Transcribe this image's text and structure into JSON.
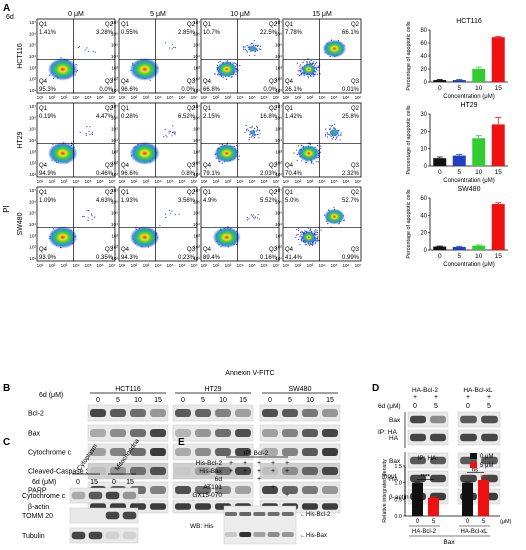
{
  "panels": {
    "A": "A",
    "B": "B",
    "C": "C",
    "D": "D",
    "E": "E"
  },
  "flow": {
    "compound_label": "6d",
    "concentrations": [
      "0 μM",
      "5 μM",
      "10 μM",
      "15 μM"
    ],
    "row_labels": [
      "HCT116",
      "HT29",
      "SW480"
    ],
    "y_axis_label": "PI",
    "x_axis_label": "Annexin V-FITC",
    "quadrant_names": [
      "Q1",
      "Q2",
      "Q3",
      "Q4"
    ],
    "y_ticks": [
      "10⁷",
      "10⁶",
      "10⁵",
      "10⁴",
      "10³",
      "10²",
      "10¹"
    ],
    "x_ticks": [
      "10¹",
      "10²",
      "10³",
      "10⁴",
      "10⁵",
      "10⁶",
      "10⁷"
    ],
    "quadrant_values": [
      [
        [
          "1.41%",
          "3.28%",
          "0.0%",
          "95.3%"
        ],
        [
          "0.55%",
          "2.85%",
          "0.0%",
          "96.6%"
        ],
        [
          "10.7%",
          "22.5%",
          "0.0%",
          "66.8%"
        ],
        [
          "7.78%",
          "66.1%",
          "0.01%",
          "26.1%"
        ]
      ],
      [
        [
          "0.19%",
          "4.47%",
          "0.46%",
          "94.9%"
        ],
        [
          "0.28%",
          "6.52%",
          "0.8%",
          "96.6%"
        ],
        [
          "2.15%",
          "16.8%",
          "2.03%",
          "79.1%"
        ],
        [
          "1.42%",
          "25.8%",
          "2.32%",
          "70.4%"
        ]
      ],
      [
        [
          "1.09%",
          "4.63%",
          "0.35%",
          "93.9%"
        ],
        [
          "1.93%",
          "3.56%",
          "0.23%",
          "94.3%"
        ],
        [
          "4.9%",
          "5.52%",
          "0.16%",
          "89.4%"
        ],
        [
          "5.0%",
          "52.7%",
          "0.99%",
          "41.4%"
        ]
      ]
    ]
  },
  "bar_charts": {
    "ylabel": "Percentage of apoptotic cells",
    "xlabel": "Concentration (μM)"
  },
  "blot_b": {
    "compound_label": "6d (μM)",
    "cell_lines": [
      "HCT116",
      "HT29",
      "SW480"
    ],
    "doses": [
      "0",
      "5",
      "10",
      "15"
    ],
    "proteins": [
      "Bcl-2",
      "Bax",
      "Cytochrome c",
      "Cleaved-Caspase 3",
      "PARP",
      "β-actin"
    ]
  },
  "blot_c": {
    "compound_label": "6d (μM)",
    "fractions": [
      "Cytoplasm",
      "Mitochondria"
    ],
    "doses": [
      "0",
      "15",
      "0",
      "15"
    ],
    "proteins": [
      "Cytochrome c",
      "TOMM 20",
      "Tubulin"
    ]
  },
  "blot_d": {
    "constructs": [
      "HA-Bcl-2",
      "HA-Bcl-xL"
    ],
    "plus_signs": [
      "+",
      "+",
      "+",
      "+"
    ],
    "compound_label": "6d (μM)",
    "doses": [
      "0",
      "5",
      "0",
      "5"
    ],
    "ip_label": "IP: HA",
    "input_label": "Input",
    "ip_proteins": [
      "Bax",
      "HA"
    ],
    "input_proteins": [
      "Bax",
      "HA",
      "β-actin"
    ]
  },
  "blot_e": {
    "ip_label": "IP: Bcl-2",
    "treatments": [
      "His-Bcl-2",
      "His-Bax",
      "6d",
      "AT101",
      "GX15-070"
    ],
    "marks": [
      [
        "+",
        "+",
        "+",
        "+",
        "+"
      ],
      [
        "+",
        "+",
        "+",
        "+",
        "+"
      ],
      [
        "",
        "",
        "+",
        "",
        ""
      ],
      [
        "",
        "",
        "",
        "+",
        ""
      ],
      [
        "",
        "",
        "",
        "",
        "+"
      ]
    ],
    "wb_label": "WB: His",
    "band_labels": [
      "His-Bcl-2",
      "His-Bax"
    ]
  },
  "chart_data": [
    {
      "type": "bar",
      "title": "HCT116",
      "categories": [
        "0",
        "5",
        "10",
        "15"
      ],
      "values": [
        3,
        3,
        20,
        69
      ],
      "errors": [
        1,
        1,
        3,
        1
      ],
      "colors": [
        "#111111",
        "#1f3fbf",
        "#33cc33",
        "#ee1111"
      ],
      "ylim": [
        0,
        80
      ],
      "yticks": [
        0,
        20,
        40,
        60,
        80
      ],
      "ylabel": "Percentage of apoptotic cells",
      "xlabel": "Concentration (μM)"
    },
    {
      "type": "bar",
      "title": "HT29",
      "categories": [
        "0",
        "5",
        "10",
        "15"
      ],
      "values": [
        4.5,
        6,
        16,
        24
      ],
      "errors": [
        0.7,
        0.6,
        1.5,
        4
      ],
      "colors": [
        "#111111",
        "#1f3fbf",
        "#33cc33",
        "#ee1111"
      ],
      "ylim": [
        0,
        30
      ],
      "yticks": [
        0,
        10,
        20,
        30
      ],
      "ylabel": "Percentage of apoptotic cells",
      "xlabel": "Concentration (μM)"
    },
    {
      "type": "bar",
      "title": "SW480",
      "categories": [
        "0",
        "5",
        "10",
        "15"
      ],
      "values": [
        4,
        3.5,
        5,
        53
      ],
      "errors": [
        0.6,
        0.8,
        0.8,
        1.5
      ],
      "colors": [
        "#111111",
        "#1f3fbf",
        "#33cc33",
        "#ee1111"
      ],
      "ylim": [
        0,
        60
      ],
      "yticks": [
        0,
        20,
        40,
        60
      ],
      "ylabel": "Percentage of apoptotic cells",
      "xlabel": "Concentration (μM)"
    },
    {
      "type": "bar",
      "title": "IP: HA",
      "categories": [
        "HA-Bcl-2 0",
        "HA-Bcl-2 5",
        "HA-Bcl-xL 0",
        "HA-Bcl-xL 5"
      ],
      "group_labels": [
        "HA-Bcl-2",
        "HA-Bcl-xL"
      ],
      "dose_labels": [
        "0",
        "5",
        "0",
        "5"
      ],
      "series": [
        {
          "name": "0 μM",
          "values": [
            1.0,
            null,
            1.0,
            null
          ]
        },
        {
          "name": "5 μM",
          "values": [
            null,
            0.55,
            null,
            1.08
          ]
        }
      ],
      "values": [
        1.0,
        0.55,
        1.0,
        1.08
      ],
      "errors": [
        0.02,
        0.03,
        0.02,
        0.12
      ],
      "colors": [
        "#111111",
        "#ee1111",
        "#111111",
        "#ee1111"
      ],
      "ylim": [
        0,
        1.5
      ],
      "yticks": [
        0,
        0.5,
        1.0,
        1.5
      ],
      "ylabel": "Relative integrated density",
      "xlabel": "Bax",
      "xunit": "(μM)",
      "significance": [
        "****",
        "ns"
      ],
      "legend": [
        "0 μM",
        "5 μM"
      ]
    }
  ]
}
